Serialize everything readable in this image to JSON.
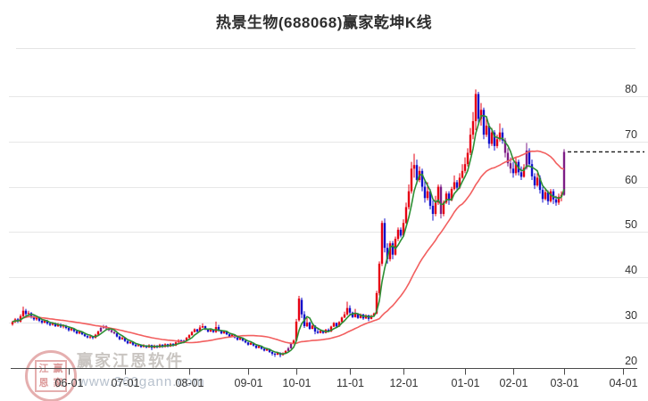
{
  "header": {
    "title": "热景生物(688068)赢家乾坤K线"
  },
  "watermark": {
    "software_name": "赢家江恩软件",
    "url": "www.360gann.com",
    "stamp_chars": [
      "江",
      "赢",
      "恩",
      "家"
    ]
  },
  "colors": {
    "up_candle": "#e60113",
    "down_candle": "#1212cc",
    "signal_candle": "#7d1d86",
    "ma_short": "#2d8f34",
    "ma_long": "#f25f5f",
    "grid": "#e7e7e7",
    "axis": "#4a4a4a",
    "label": "#333333",
    "last_price_line": "#1a1a1a"
  },
  "chart_data": {
    "type": "candlestick",
    "title": "热景生物(688068)赢家乾坤K线",
    "xlabel": "",
    "ylabel": "",
    "ylim": [
      20,
      90
    ],
    "grid": "horizontal",
    "y_ticks": [
      80,
      70,
      60,
      50,
      40,
      30,
      20
    ],
    "x_ticks": [
      {
        "label": "06-01",
        "d": 21
      },
      {
        "label": "07-01",
        "d": 42
      },
      {
        "label": "08-01",
        "d": 66
      },
      {
        "label": "09-01",
        "d": 88
      },
      {
        "label": "10-01",
        "d": 106
      },
      {
        "label": "11-01",
        "d": 126
      },
      {
        "label": "12-01",
        "d": 146
      },
      {
        "label": "01-01",
        "d": 169
      },
      {
        "label": "02-01",
        "d": 187
      },
      {
        "label": "03-01",
        "d": 206
      },
      {
        "label": "04-01",
        "d": 228
      }
    ],
    "ma_short_window": 5,
    "ma_long_window": 30,
    "last_price": 67.7,
    "purple_days": [
      33,
      34,
      35,
      36,
      37,
      38,
      64,
      103,
      104,
      160,
      184,
      185,
      186,
      192,
      206
    ],
    "candles": [
      [
        29.6,
        30.4,
        29.3,
        30.1
      ],
      [
        30.1,
        31.0,
        29.9,
        30.7
      ],
      [
        30.7,
        31.0,
        29.9,
        30.2
      ],
      [
        30.2,
        31.8,
        30.0,
        31.4
      ],
      [
        31.4,
        33.5,
        31.2,
        32.6
      ],
      [
        32.6,
        33.0,
        31.5,
        31.9
      ],
      [
        31.9,
        32.6,
        31.4,
        32.1
      ],
      [
        32.1,
        32.3,
        30.9,
        31.2
      ],
      [
        31.2,
        31.6,
        30.4,
        30.7
      ],
      [
        30.7,
        31.5,
        30.4,
        31.1
      ],
      [
        31.1,
        31.3,
        30.1,
        30.4
      ],
      [
        30.4,
        30.8,
        29.7,
        30.0
      ],
      [
        30.0,
        30.7,
        29.8,
        30.4
      ],
      [
        30.4,
        30.6,
        29.5,
        29.8
      ],
      [
        29.8,
        30.2,
        29.2,
        29.5
      ],
      [
        29.5,
        30.1,
        29.3,
        29.8
      ],
      [
        29.8,
        30.0,
        29.0,
        29.2
      ],
      [
        29.2,
        29.9,
        29.0,
        29.6
      ],
      [
        29.6,
        29.8,
        28.8,
        29.1
      ],
      [
        29.1,
        29.6,
        28.7,
        29.3
      ],
      [
        29.3,
        29.5,
        28.5,
        28.8
      ],
      [
        28.8,
        29.0,
        28.0,
        28.3
      ],
      [
        28.3,
        28.9,
        28.1,
        28.7
      ],
      [
        28.7,
        28.8,
        27.8,
        28.1
      ],
      [
        28.1,
        28.3,
        27.4,
        27.6
      ],
      [
        27.6,
        28.2,
        27.4,
        28.0
      ],
      [
        28.0,
        28.1,
        27.2,
        27.4
      ],
      [
        27.4,
        27.6,
        26.8,
        27.0
      ],
      [
        27.0,
        27.2,
        26.5,
        26.7
      ],
      [
        26.7,
        27.1,
        26.4,
        26.9
      ],
      [
        26.9,
        27.0,
        26.3,
        26.6
      ],
      [
        26.6,
        27.5,
        26.5,
        27.3
      ],
      [
        27.3,
        28.2,
        27.1,
        28.0
      ],
      [
        28.0,
        29.0,
        27.9,
        28.8
      ],
      [
        28.8,
        29.5,
        28.6,
        29.2
      ],
      [
        29.2,
        29.4,
        28.5,
        28.7
      ],
      [
        28.7,
        28.9,
        28.1,
        28.3
      ],
      [
        28.3,
        28.5,
        27.7,
        27.9
      ],
      [
        27.9,
        28.1,
        27.4,
        27.6
      ],
      [
        27.6,
        27.8,
        26.7,
        26.9
      ],
      [
        26.9,
        27.1,
        26.1,
        26.3
      ],
      [
        26.3,
        26.9,
        26.2,
        26.6
      ],
      [
        26.6,
        26.7,
        25.7,
        25.9
      ],
      [
        25.9,
        26.1,
        25.2,
        25.4
      ],
      [
        25.4,
        26.0,
        25.3,
        25.7
      ],
      [
        25.7,
        25.8,
        24.9,
        25.1
      ],
      [
        25.1,
        25.3,
        24.6,
        24.8
      ],
      [
        24.8,
        25.3,
        24.7,
        25.0
      ],
      [
        25.0,
        25.1,
        24.4,
        24.6
      ],
      [
        24.6,
        25.2,
        24.5,
        24.9
      ],
      [
        24.9,
        25.0,
        24.3,
        24.5
      ],
      [
        24.5,
        25.2,
        24.4,
        25.0
      ],
      [
        25.0,
        25.1,
        23.9,
        24.4
      ],
      [
        24.4,
        25.1,
        24.3,
        24.9
      ],
      [
        24.9,
        25.0,
        24.3,
        24.5
      ],
      [
        24.5,
        25.3,
        24.4,
        25.1
      ],
      [
        25.1,
        25.2,
        24.4,
        24.6
      ],
      [
        24.6,
        25.4,
        24.5,
        25.2
      ],
      [
        25.2,
        25.3,
        24.5,
        24.7
      ],
      [
        24.7,
        25.5,
        24.6,
        25.3
      ],
      [
        25.3,
        25.4,
        24.7,
        24.9
      ],
      [
        24.9,
        25.8,
        24.8,
        25.6
      ],
      [
        25.6,
        26.3,
        25.5,
        26.1
      ],
      [
        26.1,
        26.2,
        25.3,
        25.5
      ],
      [
        25.5,
        26.2,
        25.4,
        26.0
      ],
      [
        26.0,
        26.8,
        25.9,
        26.6
      ],
      [
        26.6,
        27.4,
        26.5,
        27.2
      ],
      [
        27.2,
        28.1,
        27.1,
        27.9
      ],
      [
        27.9,
        28.7,
        27.8,
        28.5
      ],
      [
        28.5,
        28.6,
        27.8,
        28.0
      ],
      [
        28.0,
        29.4,
        27.9,
        28.9
      ],
      [
        28.9,
        29.8,
        28.8,
        29.2
      ],
      [
        29.2,
        29.3,
        28.3,
        28.5
      ],
      [
        28.5,
        28.7,
        27.8,
        28.0
      ],
      [
        28.0,
        28.6,
        27.9,
        28.4
      ],
      [
        28.4,
        28.5,
        27.7,
        27.9
      ],
      [
        27.9,
        30.2,
        27.7,
        29.0
      ],
      [
        29.0,
        29.5,
        28.0,
        28.2
      ],
      [
        28.2,
        28.4,
        27.4,
        27.6
      ],
      [
        27.6,
        28.3,
        27.5,
        28.1
      ],
      [
        28.1,
        28.2,
        27.2,
        27.4
      ],
      [
        27.4,
        27.5,
        26.7,
        26.9
      ],
      [
        26.9,
        27.5,
        26.8,
        27.3
      ],
      [
        27.3,
        27.4,
        26.5,
        26.7
      ],
      [
        26.7,
        26.8,
        26.0,
        26.2
      ],
      [
        26.2,
        26.8,
        26.1,
        26.6
      ],
      [
        26.6,
        26.7,
        25.8,
        26.0
      ],
      [
        26.0,
        26.1,
        25.4,
        25.6
      ],
      [
        25.6,
        25.7,
        24.9,
        25.1
      ],
      [
        25.1,
        25.7,
        25.0,
        25.5
      ],
      [
        25.5,
        25.6,
        24.7,
        24.9
      ],
      [
        24.9,
        25.0,
        24.2,
        24.4
      ],
      [
        24.4,
        25.0,
        24.3,
        24.8
      ],
      [
        24.8,
        24.9,
        24.0,
        24.2
      ],
      [
        24.2,
        24.3,
        23.6,
        23.8
      ],
      [
        23.8,
        24.3,
        23.7,
        24.1
      ],
      [
        24.1,
        24.2,
        23.3,
        23.5
      ],
      [
        23.5,
        23.6,
        22.7,
        23.1
      ],
      [
        23.1,
        23.3,
        22.4,
        22.9
      ],
      [
        22.9,
        23.5,
        22.8,
        23.3
      ],
      [
        23.3,
        23.4,
        22.3,
        22.8
      ],
      [
        22.8,
        23.4,
        22.7,
        23.2
      ],
      [
        23.2,
        23.9,
        23.1,
        23.7
      ],
      [
        23.7,
        24.6,
        23.5,
        24.3
      ],
      [
        24.3,
        25.6,
        24.2,
        25.4
      ],
      [
        25.4,
        26.3,
        25.2,
        26.0
      ],
      [
        26.0,
        30.8,
        25.8,
        30.2
      ],
      [
        30.5,
        35.9,
        30.2,
        35.3
      ],
      [
        35.0,
        35.5,
        31.0,
        31.8
      ],
      [
        31.8,
        32.5,
        28.8,
        29.2
      ],
      [
        29.2,
        31.0,
        29.0,
        30.0
      ],
      [
        30.0,
        30.2,
        28.4,
        28.6
      ],
      [
        28.6,
        29.5,
        28.5,
        29.3
      ],
      [
        29.3,
        29.4,
        27.4,
        28.0
      ],
      [
        28.0,
        28.5,
        27.5,
        27.7
      ],
      [
        27.7,
        28.4,
        27.6,
        28.2
      ],
      [
        28.2,
        28.3,
        27.5,
        27.7
      ],
      [
        27.7,
        28.6,
        27.6,
        28.4
      ],
      [
        28.4,
        28.7,
        27.8,
        28.0
      ],
      [
        28.0,
        29.3,
        27.9,
        29.1
      ],
      [
        29.1,
        30.1,
        29.0,
        29.9
      ],
      [
        29.9,
        30.0,
        28.9,
        29.1
      ],
      [
        29.1,
        30.3,
        29.0,
        30.1
      ],
      [
        30.1,
        31.3,
        30.0,
        31.1
      ],
      [
        31.1,
        32.4,
        31.0,
        31.8
      ],
      [
        31.8,
        34.6,
        31.5,
        33.2
      ],
      [
        33.2,
        33.8,
        31.8,
        32.2
      ],
      [
        32.2,
        32.4,
        31.0,
        31.2
      ],
      [
        31.2,
        33.0,
        31.1,
        32.0
      ],
      [
        32.0,
        32.1,
        30.8,
        31.0
      ],
      [
        31.0,
        32.0,
        30.9,
        31.8
      ],
      [
        31.8,
        31.9,
        30.6,
        30.9
      ],
      [
        30.9,
        31.8,
        30.8,
        31.6
      ],
      [
        31.6,
        31.7,
        30.3,
        30.8
      ],
      [
        30.8,
        31.7,
        30.7,
        31.5
      ],
      [
        31.5,
        32.2,
        31.3,
        32.0
      ],
      [
        32.0,
        37.0,
        31.8,
        36.5
      ],
      [
        36.5,
        43.5,
        36.0,
        43.0
      ],
      [
        43.0,
        52.5,
        42.5,
        52.0
      ],
      [
        52.0,
        53.0,
        45.5,
        46.5
      ],
      [
        46.5,
        47.5,
        43.0,
        44.0
      ],
      [
        44.0,
        48.0,
        43.5,
        47.5
      ],
      [
        47.5,
        48.0,
        44.0,
        45.0
      ],
      [
        45.0,
        49.0,
        44.8,
        48.5
      ],
      [
        48.5,
        51.0,
        48.0,
        50.5
      ],
      [
        50.5,
        51.0,
        48.8,
        49.2
      ],
      [
        49.2,
        52.8,
        49.0,
        52.0
      ],
      [
        52.0,
        56.5,
        51.8,
        55.5
      ],
      [
        55.5,
        60.5,
        55.0,
        59.0
      ],
      [
        59.0,
        65.5,
        58.5,
        64.0
      ],
      [
        64.0,
        67.3,
        62.0,
        64.8
      ],
      [
        64.8,
        66.0,
        60.5,
        61.5
      ],
      [
        61.5,
        64.5,
        61.0,
        63.5
      ],
      [
        63.5,
        64.0,
        59.0,
        60.0
      ],
      [
        60.0,
        61.5,
        56.5,
        57.5
      ],
      [
        57.5,
        61.0,
        57.0,
        59.0
      ],
      [
        59.0,
        59.5,
        55.0,
        55.8
      ],
      [
        55.8,
        57.0,
        52.5,
        54.0
      ],
      [
        54.0,
        58.0,
        53.5,
        56.5
      ],
      [
        56.5,
        60.5,
        56.0,
        60.0
      ],
      [
        60.0,
        60.5,
        53.0,
        54.0
      ],
      [
        54.0,
        57.0,
        53.5,
        56.5
      ],
      [
        56.5,
        59.0,
        56.2,
        58.5
      ],
      [
        58.5,
        59.0,
        56.0,
        57.0
      ],
      [
        57.0,
        60.0,
        56.8,
        59.5
      ],
      [
        59.5,
        62.5,
        59.2,
        61.0
      ],
      [
        61.0,
        61.5,
        59.0,
        59.8
      ],
      [
        59.8,
        63.0,
        59.5,
        62.0
      ],
      [
        62.0,
        65.0,
        61.8,
        63.5
      ],
      [
        63.5,
        66.5,
        63.0,
        65.0
      ],
      [
        65.0,
        68.5,
        64.5,
        67.5
      ],
      [
        67.5,
        73.0,
        67.0,
        71.5
      ],
      [
        71.5,
        76.5,
        70.5,
        74.5
      ],
      [
        74.5,
        81.5,
        72.5,
        80.5
      ],
      [
        80.5,
        81.0,
        73.5,
        75.0
      ],
      [
        75.0,
        78.5,
        73.5,
        77.0
      ],
      [
        77.0,
        77.5,
        70.5,
        71.5
      ],
      [
        71.5,
        75.5,
        71.0,
        73.5
      ],
      [
        73.5,
        74.0,
        68.5,
        69.5
      ],
      [
        69.5,
        73.0,
        69.0,
        72.0
      ],
      [
        72.0,
        72.5,
        68.0,
        69.0
      ],
      [
        69.0,
        71.5,
        68.5,
        70.5
      ],
      [
        70.5,
        74.0,
        70.0,
        72.0
      ],
      [
        72.0,
        73.0,
        69.5,
        70.2
      ],
      [
        70.2,
        70.8,
        66.5,
        67.5
      ],
      [
        67.5,
        68.5,
        64.5,
        65.2
      ],
      [
        65.2,
        66.5,
        63.0,
        64.0
      ],
      [
        64.0,
        65.5,
        62.0,
        63.0
      ],
      [
        63.0,
        66.5,
        62.5,
        65.5
      ],
      [
        65.5,
        66.0,
        62.5,
        63.2
      ],
      [
        63.2,
        64.5,
        61.5,
        62.2
      ],
      [
        62.2,
        65.0,
        62.0,
        64.2
      ],
      [
        64.2,
        69.7,
        63.8,
        68.0
      ],
      [
        68.0,
        68.5,
        64.5,
        65.0
      ],
      [
        65.0,
        66.0,
        61.5,
        62.3
      ],
      [
        62.3,
        63.0,
        59.5,
        60.3
      ],
      [
        60.3,
        63.0,
        60.0,
        62.0
      ],
      [
        62.0,
        62.5,
        58.5,
        59.3
      ],
      [
        59.3,
        60.0,
        56.5,
        57.3
      ],
      [
        57.3,
        59.5,
        57.0,
        58.8
      ],
      [
        58.8,
        59.2,
        56.0,
        56.8
      ],
      [
        56.8,
        59.5,
        56.5,
        59.0
      ],
      [
        59.0,
        59.5,
        56.2,
        57.2
      ],
      [
        57.2,
        58.0,
        55.8,
        56.5
      ],
      [
        56.5,
        58.5,
        56.0,
        57.8
      ],
      [
        57.8,
        59.0,
        56.8,
        58.2
      ],
      [
        58.2,
        68.3,
        58.0,
        67.7
      ]
    ]
  }
}
